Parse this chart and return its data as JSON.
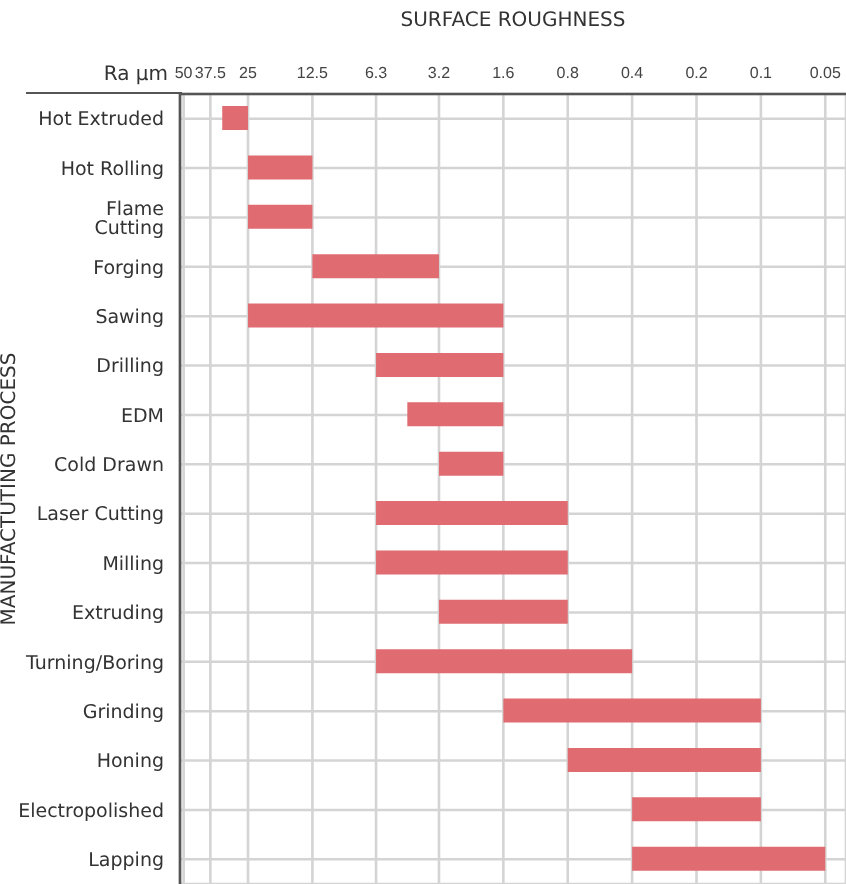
{
  "chart_data": {
    "type": "bar",
    "orientation": "horizontal",
    "xlabel": "SURFACE ROUGHNESS",
    "ylabel": "MANUFACTUTING PROCESS",
    "annotations": [
      "Ra µm"
    ],
    "categories": [
      "Hot Extruded",
      "Hot Rolling",
      "Flame Cutting",
      "Forging",
      "Sawing",
      "Drilling",
      "EDM",
      "Cold Drawn",
      "Laser Cutting",
      "Milling",
      "Extruding",
      "Turning/Boring",
      "Grinding",
      "Honing",
      "Electropolished",
      "Lapping"
    ],
    "base": [
      25,
      12.5,
      12.5,
      3.2,
      1.6,
      1.6,
      1.6,
      1.6,
      0.8,
      0.8,
      0.8,
      0.4,
      0.1,
      0.1,
      0.1,
      0.05
    ],
    "values": [
      8,
      12.5,
      12.5,
      9.3,
      23.4,
      4.7,
      2.9,
      1.6,
      5.5,
      5.5,
      2.4,
      5.9,
      1.5,
      0.7,
      0.3,
      0.35
    ],
    "color": "#e06b70",
    "xlim": [
      52,
      0.04
    ],
    "log": "x",
    "xticks": [
      50,
      37.5,
      25,
      12.5,
      6.3,
      3.2,
      1.6,
      0.8,
      0.4,
      0.2,
      0.1,
      0.05
    ],
    "grid": true
  }
}
